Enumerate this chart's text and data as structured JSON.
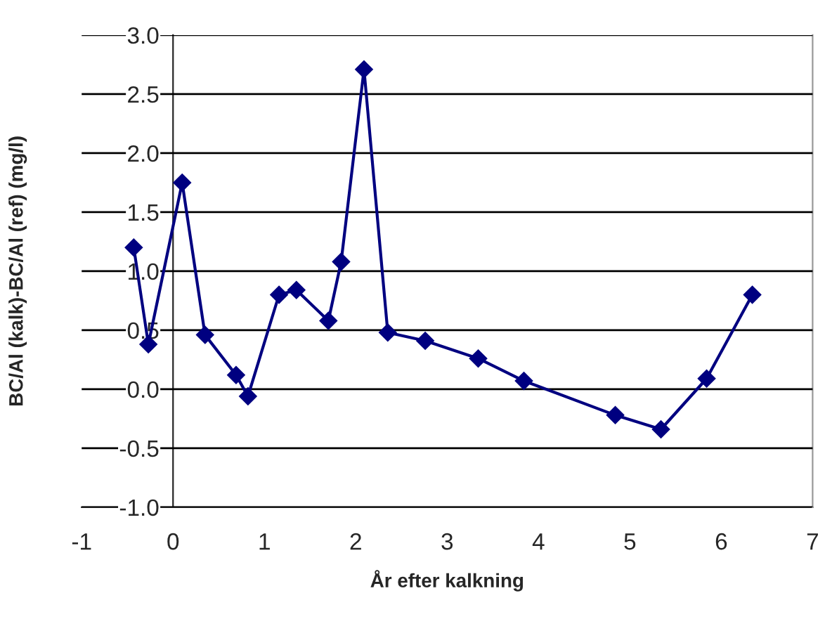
{
  "chart_data": {
    "type": "line",
    "xlabel": "År efter kalkning",
    "ylabel": "BC/Al (kalk)-BC/Al (ref) (mg/l)",
    "series": [
      {
        "color": "#000080",
        "x": [
          -0.43,
          -0.27,
          0.1,
          0.35,
          0.69,
          0.82,
          1.16,
          1.35,
          1.7,
          1.84,
          2.09,
          2.35,
          2.76,
          3.34,
          3.84,
          4.84,
          5.34,
          5.84,
          6.34
        ],
        "values": [
          1.2,
          0.38,
          1.75,
          0.46,
          0.12,
          -0.06,
          0.8,
          0.84,
          0.58,
          1.08,
          2.71,
          0.48,
          0.41,
          0.26,
          0.07,
          -0.22,
          -0.34,
          0.09,
          0.8
        ]
      }
    ],
    "xlim": [
      -1,
      7
    ],
    "xticks": [
      -1,
      0,
      1,
      2,
      3,
      4,
      5,
      6,
      7
    ],
    "ylim": [
      -1.0,
      3.0
    ],
    "yticks": [
      {
        "value": -1.0,
        "label": "-1.0"
      },
      {
        "value": -0.5,
        "label": "-0.5"
      },
      {
        "value": 0.0,
        "label": "0.0"
      },
      {
        "value": 0.5,
        "label": "0.5"
      },
      {
        "value": 1.0,
        "label": "1.0"
      },
      {
        "value": 1.5,
        "label": "1.5"
      },
      {
        "value": 2.0,
        "label": "2.0"
      },
      {
        "value": 2.5,
        "label": "2.5"
      },
      {
        "value": 3.0,
        "label": "3.0"
      }
    ],
    "grid": "y",
    "marker": "diamond",
    "line_style": "solid"
  }
}
